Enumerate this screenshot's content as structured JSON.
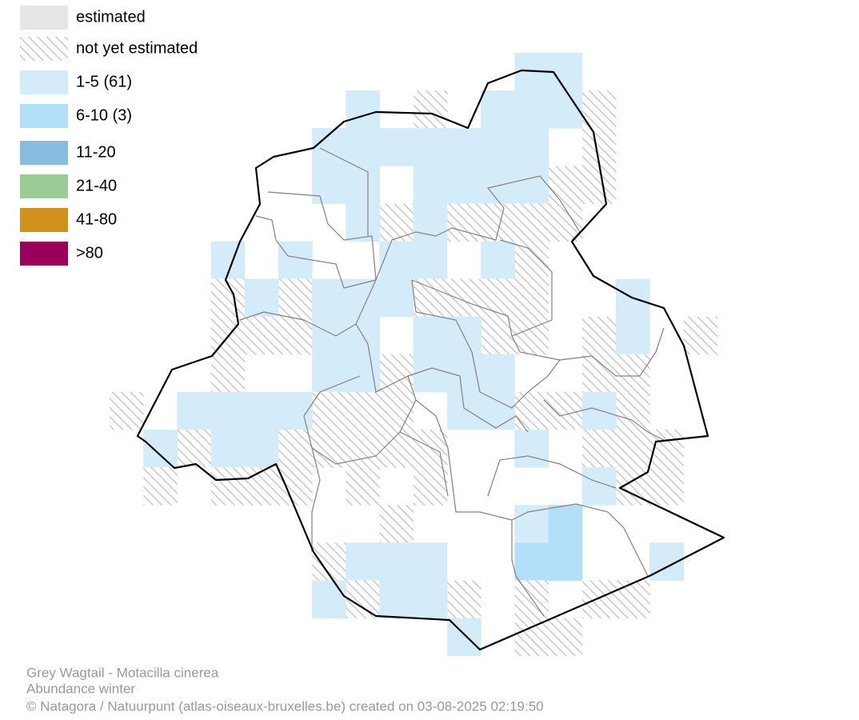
{
  "legend": {
    "items": [
      {
        "label": "estimated",
        "color": "#e6e6e6"
      },
      {
        "label": "not yet estimated"
      },
      {
        "label": "1-5 (61)",
        "color": "#d4ebfa"
      },
      {
        "label": "6-10 (3)",
        "color": "#b3e0f8"
      },
      {
        "label": "11-20",
        "color": "#88bde0"
      },
      {
        "label": "21-40",
        "color": "#9bcc96"
      },
      {
        "label": "41-80",
        "color": "#d0911d"
      },
      {
        "label": ">80",
        "color": "#99005c"
      }
    ]
  },
  "footer": {
    "title": "Grey Wagtail - Motacilla cinerea",
    "subtitle": "Abundance winter",
    "credit": "© Natagora / Natuurpunt (atlas-oiseaux-bruxelles.be) created on 03-08-2025 02:19:50"
  }
}
